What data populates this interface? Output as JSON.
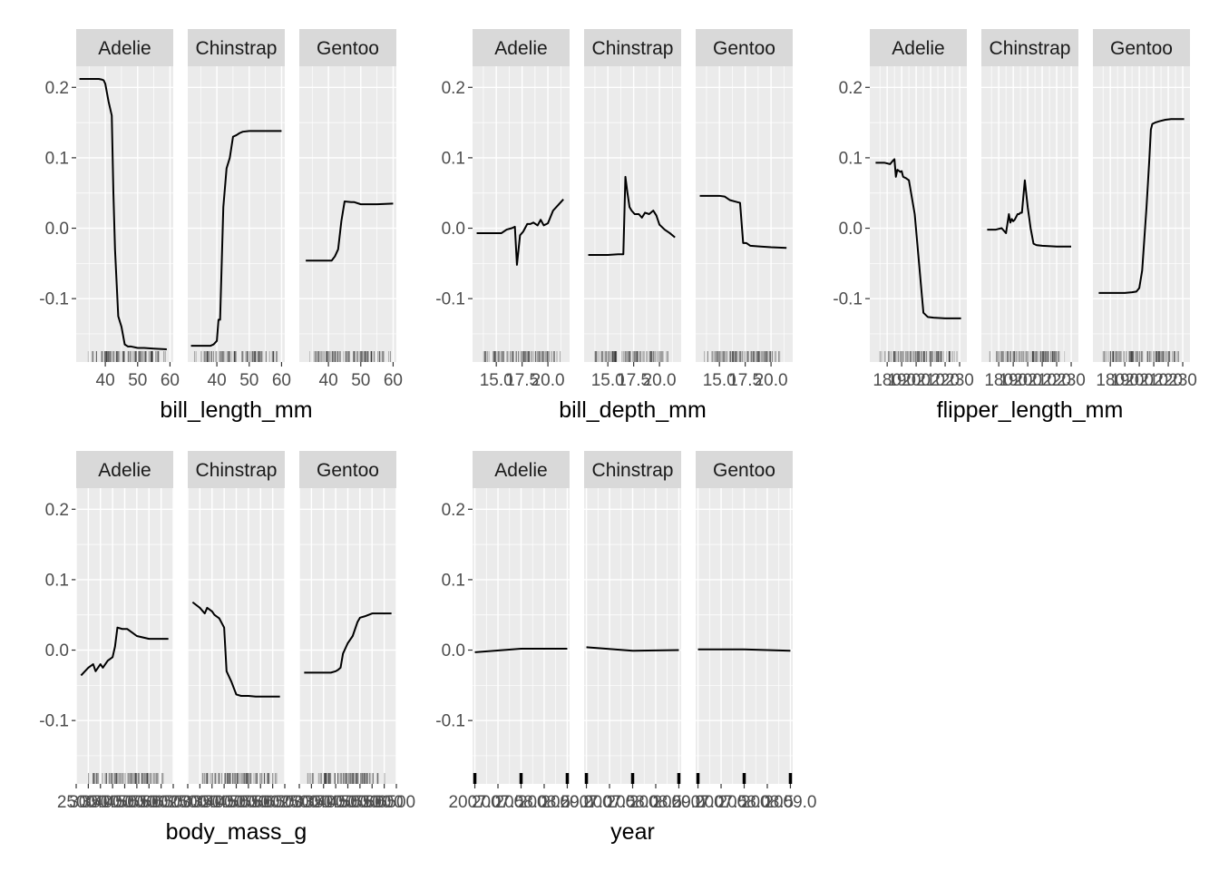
{
  "facet_labels": [
    "Adelie",
    "Chinstrap",
    "Gentoo"
  ],
  "colors": {
    "panel_bg": "#EBEBEB",
    "strip_bg": "#D9D9D9",
    "grid": "#FFFFFF",
    "line": "#000000",
    "rug": "#000000",
    "tick_text": "#4D4D4D",
    "axis_title": "#000000"
  },
  "chart_data": [
    {
      "type": "line",
      "xlabel": "bill_length_mm",
      "xlim": [
        31,
        61
      ],
      "xticks": [
        40,
        50,
        60
      ],
      "xtick_labels": [
        "40",
        "50",
        "60"
      ],
      "x_minor": [
        35,
        45,
        55
      ],
      "ylim": [
        -0.19,
        0.23
      ],
      "yticks": [
        0.2,
        0.1,
        0.0,
        -0.1
      ],
      "ytick_labels": [
        "0.2",
        "0.1",
        "0.0",
        "-0.1"
      ],
      "rug_range": [
        32,
        60
      ],
      "series": [
        {
          "facet": "Adelie",
          "x": [
            32,
            34,
            36,
            38,
            39,
            39.5,
            40,
            41,
            41.5,
            42,
            42.5,
            43,
            44,
            45,
            46,
            47,
            48,
            50,
            52,
            55,
            59
          ],
          "y": [
            0.212,
            0.212,
            0.212,
            0.212,
            0.211,
            0.21,
            0.205,
            0.18,
            0.17,
            0.16,
            0.05,
            -0.03,
            -0.125,
            -0.14,
            -0.165,
            -0.168,
            -0.168,
            -0.17,
            -0.17,
            -0.171,
            -0.172
          ]
        },
        {
          "facet": "Chinstrap",
          "x": [
            32,
            35,
            38,
            39,
            40,
            40.5,
            41,
            42,
            43,
            44,
            45,
            46,
            47,
            48,
            50,
            55,
            60
          ],
          "y": [
            -0.167,
            -0.167,
            -0.167,
            -0.165,
            -0.16,
            -0.13,
            -0.13,
            0.03,
            0.085,
            0.1,
            0.13,
            0.132,
            0.135,
            0.137,
            0.138,
            0.138,
            0.138
          ]
        },
        {
          "facet": "Gentoo",
          "x": [
            33,
            36,
            40,
            41,
            42,
            43,
            44,
            45,
            47,
            48,
            50,
            55,
            60
          ],
          "y": [
            -0.046,
            -0.046,
            -0.046,
            -0.046,
            -0.04,
            -0.03,
            0.01,
            0.038,
            0.037,
            0.037,
            0.034,
            0.034,
            0.035
          ]
        }
      ]
    },
    {
      "type": "line",
      "xlabel": "bill_depth_mm",
      "xlim": [
        12.7,
        22.1
      ],
      "xticks": [
        15.0,
        17.5,
        20.0
      ],
      "xtick_labels": [
        "15.0",
        "17.5",
        "20.0"
      ],
      "x_minor": [
        13.75,
        16.25,
        18.75,
        21.25
      ],
      "ylim": [
        -0.19,
        0.23
      ],
      "yticks": [
        0.2,
        0.1,
        0.0,
        -0.1
      ],
      "ytick_labels": [
        "0.2",
        "0.1",
        "0.0",
        "-0.1"
      ],
      "rug_range": [
        13.1,
        21.5
      ],
      "series": [
        {
          "facet": "Adelie",
          "x": [
            13.1,
            14,
            15,
            15.5,
            16,
            16.5,
            16.8,
            17,
            17.3,
            17.6,
            18,
            18.3,
            18.6,
            19,
            19.3,
            19.6,
            20,
            20.5,
            21,
            21.5
          ],
          "y": [
            -0.007,
            -0.007,
            -0.007,
            -0.007,
            -0.002,
            0,
            0.002,
            -0.052,
            -0.01,
            -0.005,
            0.006,
            0.006,
            0.008,
            0.004,
            0.012,
            0.004,
            0.007,
            0.025,
            0.033,
            0.041
          ]
        },
        {
          "facet": "Chinstrap",
          "x": [
            13.1,
            14,
            15,
            16,
            16.5,
            16.7,
            16.9,
            17.1,
            17.3,
            17.6,
            18,
            18.3,
            18.6,
            19,
            19.4,
            19.7,
            20,
            20.5,
            21,
            21.5
          ],
          "y": [
            -0.038,
            -0.038,
            -0.038,
            -0.037,
            -0.037,
            0.073,
            0.05,
            0.03,
            0.025,
            0.02,
            0.02,
            0.015,
            0.022,
            0.02,
            0.025,
            0.018,
            0.005,
            -0.002,
            -0.007,
            -0.013
          ]
        },
        {
          "facet": "Gentoo",
          "x": [
            13.1,
            14,
            15,
            15.5,
            16,
            16.5,
            17,
            17.3,
            17.6,
            18,
            19,
            20,
            21.5
          ],
          "y": [
            0.046,
            0.046,
            0.046,
            0.045,
            0.04,
            0.038,
            0.036,
            -0.021,
            -0.021,
            -0.025,
            -0.026,
            -0.027,
            -0.028
          ]
        }
      ]
    },
    {
      "type": "line",
      "xlabel": "flipper_length_mm",
      "xlim": [
        168,
        235
      ],
      "xticks": [
        180,
        190,
        200,
        210,
        220,
        230
      ],
      "xtick_labels": [
        "180",
        "190",
        "200",
        "210",
        "220",
        "230"
      ],
      "x_minor": [
        175,
        185,
        195,
        205,
        215,
        225
      ],
      "ylim": [
        -0.19,
        0.23
      ],
      "yticks": [
        0.2,
        0.1,
        0.0,
        -0.1
      ],
      "ytick_labels": [
        "0.2",
        "0.1",
        "0.0",
        "-0.1"
      ],
      "rug_range": [
        172,
        231
      ],
      "series": [
        {
          "facet": "Adelie",
          "x": [
            172,
            178,
            182,
            184,
            185,
            186,
            187,
            189,
            190,
            191,
            193,
            195,
            199,
            202,
            205,
            208,
            212,
            220,
            231
          ],
          "y": [
            0.093,
            0.093,
            0.091,
            0.096,
            0.098,
            0.073,
            0.083,
            0.08,
            0.081,
            0.073,
            0.071,
            0.068,
            0.02,
            -0.05,
            -0.12,
            -0.126,
            -0.127,
            -0.128,
            -0.128
          ]
        },
        {
          "facet": "Chinstrap",
          "x": [
            172,
            178,
            182,
            185,
            187,
            188,
            189,
            190,
            191,
            193,
            194,
            195,
            196,
            198,
            200,
            202,
            204,
            206,
            210,
            220,
            230
          ],
          "y": [
            -0.002,
            -0.002,
            0,
            -0.007,
            0.02,
            0.008,
            0.013,
            0.01,
            0.012,
            0.02,
            0.02,
            0.022,
            0.022,
            0.068,
            0.03,
            0,
            -0.022,
            -0.024,
            -0.025,
            -0.026,
            -0.026
          ]
        },
        {
          "facet": "Gentoo",
          "x": [
            172,
            180,
            190,
            195,
            198,
            200,
            202,
            205,
            207,
            208,
            209,
            211,
            214,
            218,
            222,
            231
          ],
          "y": [
            -0.092,
            -0.092,
            -0.092,
            -0.091,
            -0.09,
            -0.085,
            -0.06,
            0.03,
            0.1,
            0.14,
            0.148,
            0.15,
            0.152,
            0.154,
            0.155,
            0.155
          ]
        }
      ]
    },
    {
      "type": "line",
      "xlabel": "body_mass_g",
      "xlim": [
        2500,
        6500
      ],
      "xticks": [
        2500,
        3000,
        3500,
        4000,
        4500,
        5000,
        5500,
        6000,
        6500
      ],
      "xtick_labels": [
        "2500",
        "3000",
        "3500",
        "4000",
        "4500",
        "5000",
        "5500",
        "6000",
        "6500"
      ],
      "x_minor": [],
      "ylim": [
        -0.19,
        0.23
      ],
      "yticks": [
        0.2,
        0.1,
        0.0,
        -0.1
      ],
      "ytick_labels": [
        "0.2",
        "0.1",
        "0.0",
        "-0.1"
      ],
      "rug_range": [
        2700,
        6300
      ],
      "series": [
        {
          "facet": "Adelie",
          "x": [
            2700,
            3000,
            3200,
            3300,
            3500,
            3600,
            3800,
            4000,
            4100,
            4200,
            4400,
            4600,
            4800,
            5000,
            5500,
            6300
          ],
          "y": [
            -0.036,
            -0.025,
            -0.02,
            -0.03,
            -0.02,
            -0.025,
            -0.015,
            -0.01,
            0.005,
            0.032,
            0.03,
            0.03,
            0.025,
            0.02,
            0.016,
            0.016
          ]
        },
        {
          "facet": "Chinstrap",
          "x": [
            2700,
            3000,
            3200,
            3300,
            3500,
            3600,
            3800,
            4000,
            4100,
            4300,
            4500,
            4700,
            5000,
            5300,
            5600,
            6000,
            6300
          ],
          "y": [
            0.068,
            0.06,
            0.052,
            0.06,
            0.055,
            0.05,
            0.045,
            0.032,
            -0.03,
            -0.045,
            -0.063,
            -0.065,
            -0.065,
            -0.066,
            -0.066,
            -0.066,
            -0.066
          ]
        },
        {
          "facet": "Gentoo",
          "x": [
            2700,
            3200,
            3500,
            3800,
            4000,
            4100,
            4200,
            4300,
            4500,
            4700,
            4900,
            5000,
            5200,
            5500,
            6000,
            6300
          ],
          "y": [
            -0.032,
            -0.032,
            -0.032,
            -0.032,
            -0.03,
            -0.028,
            -0.025,
            -0.005,
            0.01,
            0.02,
            0.04,
            0.046,
            0.048,
            0.052,
            0.052,
            0.052
          ]
        }
      ]
    },
    {
      "type": "line",
      "xlabel": "year",
      "xlim": [
        2006.95,
        2009.05
      ],
      "xticks": [
        2007.0,
        2007.5,
        2008.0,
        2008.5,
        2009.0
      ],
      "xtick_labels": [
        "2007.0",
        "2007.5",
        "2008.0",
        "2008.5",
        "2009.0"
      ],
      "x_minor": [
        2007.25,
        2007.75,
        2008.25,
        2008.75
      ],
      "ylim": [
        -0.19,
        0.23
      ],
      "yticks": [
        0.2,
        0.1,
        0.0,
        -0.1
      ],
      "ytick_labels": [
        "0.2",
        "0.1",
        "0.0",
        "-0.1"
      ],
      "rug_points": [
        2007,
        2008,
        2009
      ],
      "series": [
        {
          "facet": "Adelie",
          "x": [
            2007,
            2008,
            2009
          ],
          "y": [
            -0.003,
            0.002,
            0.002
          ]
        },
        {
          "facet": "Chinstrap",
          "x": [
            2007,
            2008,
            2009
          ],
          "y": [
            0.004,
            -0.001,
            0.0
          ]
        },
        {
          "facet": "Gentoo",
          "x": [
            2007,
            2008,
            2009
          ],
          "y": [
            0.001,
            0.001,
            -0.001
          ]
        }
      ]
    }
  ]
}
